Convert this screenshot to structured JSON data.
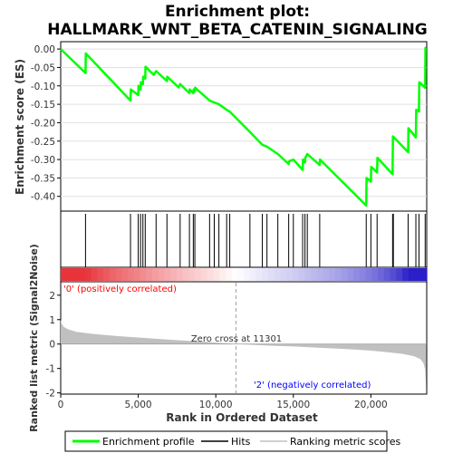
{
  "title_line1": "Enrichment plot:",
  "title_line2": "HALLMARK_WNT_BETA_CATENIN_SIGNALING",
  "colors": {
    "es_line": "#00ff00",
    "hit": "#000000",
    "metric_fill": "#c0c0c0",
    "pos_label": "#ff0000",
    "neg_label": "#0000ff",
    "zero_cross": "#a0a0a0",
    "heat_pos": "#e8333a",
    "heat_neg": "#2a1fc8"
  },
  "annotations": {
    "pos_label": "'0' (positively correlated)",
    "neg_label": "'2' (negatively correlated)",
    "zero_cross": "Zero cross at 11301"
  },
  "legend": {
    "es": "Enrichment profile",
    "hits": "Hits",
    "metric": "Ranking metric scores"
  },
  "chart_data": [
    {
      "type": "line",
      "panel": "enrichment",
      "ylabel": "Enrichment score (ES)",
      "xlim": [
        0,
        23600
      ],
      "ylim": [
        -0.44,
        0.02
      ],
      "yticks": [
        0.0,
        -0.05,
        -0.1,
        -0.15,
        -0.2,
        -0.25,
        -0.3,
        -0.35,
        -0.4
      ],
      "ytick_labels": [
        "0.00",
        "-0.05",
        "-0.10",
        "-0.15",
        "-0.20",
        "-0.25",
        "-0.30",
        "-0.35",
        "-0.40"
      ],
      "grid": true,
      "series": [
        {
          "name": "Enrichment profile",
          "points": [
            [
              0,
              0.0
            ],
            [
              1600,
              -0.065
            ],
            [
              1620,
              -0.012
            ],
            [
              4500,
              -0.14
            ],
            [
              4520,
              -0.11
            ],
            [
              5000,
              -0.125
            ],
            [
              5020,
              -0.1
            ],
            [
              5150,
              -0.11
            ],
            [
              5170,
              -0.09
            ],
            [
              5300,
              -0.095
            ],
            [
              5320,
              -0.075
            ],
            [
              5450,
              -0.08
            ],
            [
              5470,
              -0.048
            ],
            [
              6000,
              -0.07
            ],
            [
              6150,
              -0.06
            ],
            [
              6850,
              -0.087
            ],
            [
              6870,
              -0.075
            ],
            [
              7600,
              -0.104
            ],
            [
              7700,
              -0.095
            ],
            [
              8300,
              -0.12
            ],
            [
              8320,
              -0.11
            ],
            [
              8550,
              -0.12
            ],
            [
              8570,
              -0.11
            ],
            [
              8650,
              -0.115
            ],
            [
              8670,
              -0.105
            ],
            [
              9600,
              -0.14
            ],
            [
              9900,
              -0.145
            ],
            [
              10200,
              -0.15
            ],
            [
              10700,
              -0.165
            ],
            [
              10900,
              -0.17
            ],
            [
              12200,
              -0.225
            ],
            [
              13000,
              -0.26
            ],
            [
              13300,
              -0.265
            ],
            [
              14000,
              -0.285
            ],
            [
              14700,
              -0.312
            ],
            [
              14720,
              -0.305
            ],
            [
              15000,
              -0.3
            ],
            [
              15600,
              -0.328
            ],
            [
              15620,
              -0.3
            ],
            [
              15750,
              -0.308
            ],
            [
              15770,
              -0.295
            ],
            [
              15900,
              -0.285
            ],
            [
              16700,
              -0.315
            ],
            [
              16720,
              -0.3
            ],
            [
              19700,
              -0.425
            ],
            [
              19720,
              -0.35
            ],
            [
              20000,
              -0.36
            ],
            [
              20020,
              -0.32
            ],
            [
              20400,
              -0.335
            ],
            [
              20420,
              -0.295
            ],
            [
              21400,
              -0.34
            ],
            [
              21420,
              -0.237
            ],
            [
              22400,
              -0.28
            ],
            [
              22420,
              -0.215
            ],
            [
              22900,
              -0.24
            ],
            [
              22920,
              -0.165
            ],
            [
              23100,
              -0.17
            ],
            [
              23120,
              -0.09
            ],
            [
              23500,
              -0.105
            ],
            [
              23520,
              0.003
            ],
            [
              23560,
              0.003
            ]
          ]
        }
      ]
    },
    {
      "type": "scatter",
      "panel": "hits",
      "name": "Hits",
      "xlim": [
        0,
        23600
      ],
      "positions": [
        1600,
        4500,
        5000,
        5150,
        5300,
        5450,
        6150,
        6850,
        7700,
        8300,
        8550,
        8650,
        9600,
        9900,
        10200,
        10700,
        10900,
        12200,
        13000,
        13300,
        14000,
        14700,
        15000,
        15600,
        15750,
        15900,
        16700,
        19700,
        20000,
        20400,
        21400,
        21450,
        22400,
        22900,
        23100,
        23500
      ]
    },
    {
      "type": "area",
      "panel": "ranked_metric",
      "name": "Ranking metric scores",
      "xlabel": "Rank in Ordered Dataset",
      "ylabel": "Ranked list metric (Signal2Noise)",
      "xlim": [
        0,
        23600
      ],
      "ylim": [
        -2.05,
        2.55
      ],
      "xticks": [
        0,
        5000,
        10000,
        15000,
        20000
      ],
      "xtick_labels": [
        "0",
        "5,000",
        "10,000",
        "15,000",
        "20,000"
      ],
      "yticks": [
        2,
        1,
        0,
        -1,
        -2
      ],
      "ytick_labels": [
        "2",
        "1",
        "0",
        "-1",
        "-2"
      ],
      "zero_cross": 11301,
      "points": [
        [
          0,
          1.0
        ],
        [
          50,
          0.85
        ],
        [
          200,
          0.7
        ],
        [
          500,
          0.6
        ],
        [
          1000,
          0.5
        ],
        [
          2000,
          0.42
        ],
        [
          3000,
          0.36
        ],
        [
          4000,
          0.31
        ],
        [
          5000,
          0.27
        ],
        [
          6000,
          0.22
        ],
        [
          7000,
          0.18
        ],
        [
          8000,
          0.14
        ],
        [
          9000,
          0.1
        ],
        [
          10000,
          0.06
        ],
        [
          11301,
          0.0
        ],
        [
          12000,
          -0.02
        ],
        [
          13000,
          -0.05
        ],
        [
          14000,
          -0.08
        ],
        [
          15000,
          -0.1
        ],
        [
          16000,
          -0.13
        ],
        [
          17000,
          -0.16
        ],
        [
          18000,
          -0.19
        ],
        [
          19000,
          -0.23
        ],
        [
          20000,
          -0.27
        ],
        [
          21000,
          -0.33
        ],
        [
          22000,
          -0.4
        ],
        [
          22800,
          -0.5
        ],
        [
          23200,
          -0.62
        ],
        [
          23400,
          -0.8
        ],
        [
          23500,
          -1.05
        ],
        [
          23560,
          -1.8
        ]
      ]
    }
  ]
}
